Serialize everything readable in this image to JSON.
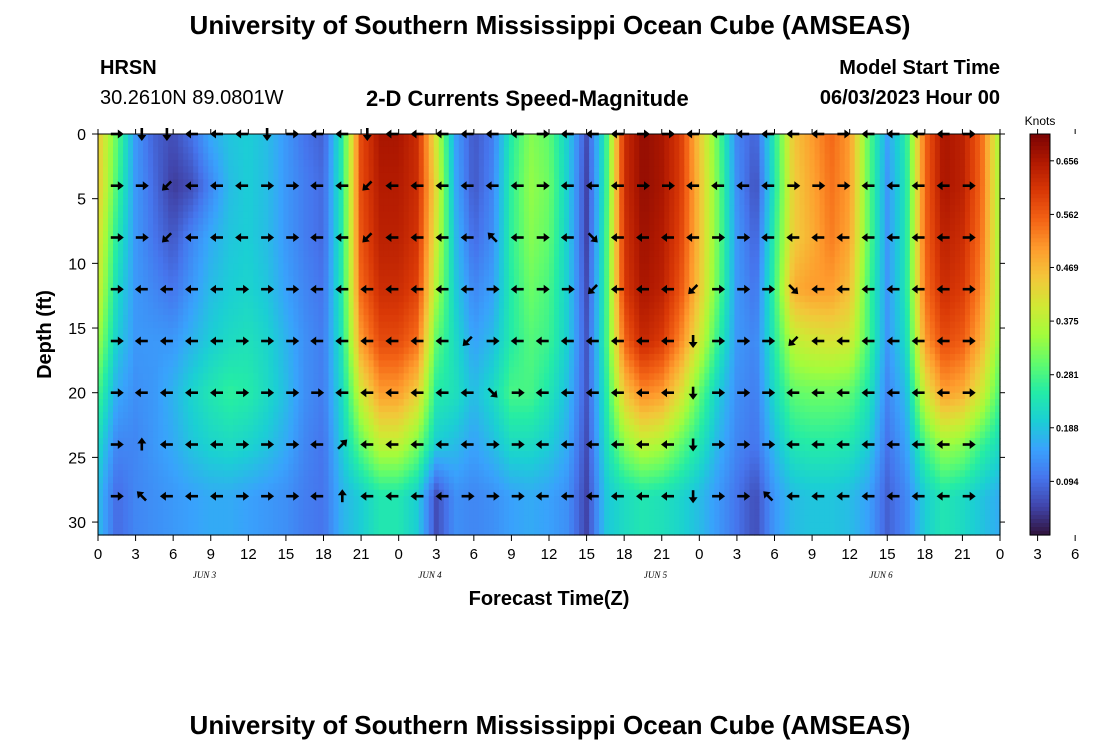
{
  "header": {
    "title": "University of Southern Mississippi Ocean Cube (AMSEAS)",
    "station": "HRSN",
    "coords": "30.2610N  89.0801W",
    "plot_title": "2-D Currents Speed-Magnitude",
    "start_label": "Model Start Time",
    "start_value": "06/03/2023 Hour 00"
  },
  "footer": {
    "title": "University of Southern Mississippi Ocean Cube (AMSEAS)"
  },
  "chart_data": {
    "type": "heatmap",
    "title": "2-D Currents Speed-Magnitude",
    "xlabel": "Forecast Time(Z)",
    "ylabel": "Depth (ft)",
    "xlim": [
      0,
      72
    ],
    "ylim": [
      31,
      0
    ],
    "x_tick_labels": [
      "0",
      "3",
      "6",
      "9",
      "12",
      "15",
      "18",
      "21",
      "0",
      "3",
      "6",
      "9",
      "12",
      "15",
      "18",
      "21",
      "0",
      "3",
      "6",
      "9",
      "12",
      "15",
      "18",
      "21",
      "0",
      "3",
      "6",
      "9",
      "12",
      "15",
      "18",
      "21",
      "0"
    ],
    "y_ticks": [
      0,
      5,
      10,
      15,
      20,
      25,
      30
    ],
    "day_labels": [
      {
        "hour": 8.5,
        "label": "JUN 3"
      },
      {
        "hour": 26.5,
        "label": "JUN 4"
      },
      {
        "hour": 44.5,
        "label": "JUN 5"
      },
      {
        "hour": 62.5,
        "label": "JUN 6"
      }
    ],
    "colorbar": {
      "title": "Knots",
      "range": [
        0,
        0.703
      ],
      "ticks": [
        0.094,
        0.188,
        0.281,
        0.375,
        0.469,
        0.562,
        0.656
      ],
      "tick_labels": [
        "0.094",
        "0.188",
        "0.281",
        "0.375",
        "0.469",
        "0.562",
        "0.656"
      ],
      "colors": [
        "#30123b",
        "#4145ab",
        "#4675ed",
        "#39a2fc",
        "#1bcfd4",
        "#24eca6",
        "#61fc6c",
        "#a4fc3b",
        "#d1e834",
        "#f3c63a",
        "#fe9b2d",
        "#f36315",
        "#d93806",
        "#b11901",
        "#7a0403"
      ]
    },
    "depth_levels_ft": [
      0,
      4,
      8,
      12,
      16,
      20,
      24,
      28
    ],
    "time_hours": [
      0,
      1.5,
      3,
      4.5,
      6,
      7.5,
      9,
      10.5,
      12,
      13.5,
      15,
      16.5,
      18,
      19.5,
      21,
      22.5,
      24,
      25.5,
      27,
      28.5,
      30,
      31.5,
      33,
      34.5,
      36,
      37.5,
      39,
      40.5,
      42,
      43.5,
      45,
      46.5,
      48,
      49.5,
      51,
      52.5,
      54,
      55.5,
      57,
      58.5,
      60,
      61.5,
      63,
      64.5,
      66,
      67.5,
      69,
      70.5,
      72
    ],
    "speed_knots_by_depth": [
      [
        0.45,
        0.3,
        0.14,
        0.08,
        0.06,
        0.1,
        0.16,
        0.19,
        0.2,
        0.18,
        0.14,
        0.1,
        0.08,
        0.25,
        0.58,
        0.66,
        0.66,
        0.62,
        0.4,
        0.15,
        0.07,
        0.11,
        0.25,
        0.33,
        0.3,
        0.2,
        0.06,
        0.25,
        0.62,
        0.68,
        0.66,
        0.6,
        0.45,
        0.3,
        0.12,
        0.08,
        0.25,
        0.45,
        0.5,
        0.55,
        0.5,
        0.3,
        0.15,
        0.25,
        0.55,
        0.66,
        0.64,
        0.55,
        0.35
      ],
      [
        0.45,
        0.28,
        0.14,
        0.09,
        0.04,
        0.06,
        0.12,
        0.18,
        0.2,
        0.18,
        0.14,
        0.11,
        0.09,
        0.25,
        0.58,
        0.65,
        0.65,
        0.62,
        0.42,
        0.16,
        0.07,
        0.12,
        0.26,
        0.34,
        0.31,
        0.2,
        0.05,
        0.25,
        0.62,
        0.68,
        0.66,
        0.6,
        0.46,
        0.31,
        0.13,
        0.06,
        0.24,
        0.44,
        0.49,
        0.54,
        0.5,
        0.3,
        0.14,
        0.24,
        0.55,
        0.66,
        0.64,
        0.55,
        0.35
      ],
      [
        0.42,
        0.25,
        0.14,
        0.1,
        0.07,
        0.12,
        0.16,
        0.19,
        0.2,
        0.18,
        0.14,
        0.11,
        0.09,
        0.25,
        0.57,
        0.64,
        0.64,
        0.61,
        0.4,
        0.18,
        0.09,
        0.13,
        0.26,
        0.33,
        0.3,
        0.2,
        0.05,
        0.26,
        0.61,
        0.67,
        0.65,
        0.59,
        0.46,
        0.31,
        0.14,
        0.08,
        0.26,
        0.44,
        0.48,
        0.53,
        0.49,
        0.3,
        0.14,
        0.24,
        0.55,
        0.64,
        0.62,
        0.54,
        0.35
      ],
      [
        0.4,
        0.22,
        0.14,
        0.12,
        0.1,
        0.14,
        0.18,
        0.2,
        0.21,
        0.19,
        0.15,
        0.12,
        0.1,
        0.25,
        0.55,
        0.62,
        0.62,
        0.59,
        0.36,
        0.2,
        0.12,
        0.15,
        0.25,
        0.31,
        0.28,
        0.2,
        0.06,
        0.26,
        0.6,
        0.66,
        0.64,
        0.57,
        0.45,
        0.3,
        0.14,
        0.1,
        0.27,
        0.48,
        0.5,
        0.5,
        0.46,
        0.28,
        0.14,
        0.24,
        0.54,
        0.62,
        0.6,
        0.52,
        0.35
      ],
      [
        0.35,
        0.2,
        0.14,
        0.14,
        0.14,
        0.17,
        0.2,
        0.22,
        0.23,
        0.21,
        0.17,
        0.13,
        0.11,
        0.24,
        0.5,
        0.58,
        0.58,
        0.54,
        0.3,
        0.22,
        0.15,
        0.18,
        0.25,
        0.29,
        0.27,
        0.2,
        0.07,
        0.26,
        0.55,
        0.63,
        0.6,
        0.52,
        0.4,
        0.26,
        0.14,
        0.12,
        0.25,
        0.38,
        0.4,
        0.41,
        0.4,
        0.28,
        0.14,
        0.22,
        0.5,
        0.58,
        0.56,
        0.48,
        0.33
      ],
      [
        0.28,
        0.16,
        0.13,
        0.14,
        0.17,
        0.21,
        0.24,
        0.26,
        0.25,
        0.22,
        0.18,
        0.13,
        0.11,
        0.22,
        0.4,
        0.5,
        0.5,
        0.44,
        0.25,
        0.23,
        0.18,
        0.22,
        0.28,
        0.28,
        0.24,
        0.18,
        0.07,
        0.24,
        0.45,
        0.52,
        0.5,
        0.42,
        0.3,
        0.2,
        0.13,
        0.11,
        0.22,
        0.3,
        0.31,
        0.31,
        0.3,
        0.24,
        0.12,
        0.18,
        0.4,
        0.5,
        0.48,
        0.4,
        0.28
      ],
      [
        0.22,
        0.12,
        0.12,
        0.14,
        0.16,
        0.19,
        0.21,
        0.22,
        0.21,
        0.19,
        0.16,
        0.12,
        0.1,
        0.2,
        0.3,
        0.38,
        0.38,
        0.32,
        0.2,
        0.18,
        0.15,
        0.18,
        0.22,
        0.22,
        0.2,
        0.16,
        0.06,
        0.22,
        0.33,
        0.38,
        0.36,
        0.3,
        0.24,
        0.17,
        0.12,
        0.1,
        0.18,
        0.24,
        0.25,
        0.25,
        0.24,
        0.2,
        0.1,
        0.15,
        0.28,
        0.35,
        0.33,
        0.27,
        0.22
      ],
      [
        0.18,
        0.09,
        0.12,
        0.13,
        0.14,
        0.15,
        0.16,
        0.16,
        0.15,
        0.14,
        0.13,
        0.11,
        0.1,
        0.17,
        0.2,
        0.24,
        0.24,
        0.2,
        0.06,
        0.13,
        0.12,
        0.13,
        0.15,
        0.16,
        0.15,
        0.13,
        0.05,
        0.19,
        0.22,
        0.24,
        0.23,
        0.21,
        0.18,
        0.14,
        0.1,
        0.06,
        0.14,
        0.18,
        0.19,
        0.19,
        0.18,
        0.15,
        0.08,
        0.12,
        0.2,
        0.24,
        0.22,
        0.19,
        0.16
      ]
    ],
    "vector_directions": [
      [
        "E",
        "S",
        "S",
        "W",
        "W",
        "W",
        "S",
        "E",
        "W",
        "W",
        "S",
        "W",
        "W",
        "W",
        "W",
        "W",
        "W",
        "E",
        "W",
        "W",
        "W",
        "E",
        "E",
        "W",
        "W",
        "W",
        "W",
        "W",
        "W",
        "E",
        "W",
        "W",
        "W",
        "W",
        "E"
      ],
      [
        "E",
        "E",
        "SW",
        "W",
        "W",
        "W",
        "E",
        "E",
        "W",
        "W",
        "SW",
        "W",
        "W",
        "W",
        "W",
        "W",
        "W",
        "E",
        "W",
        "W",
        "W",
        "E",
        "E",
        "W",
        "W",
        "W",
        "W",
        "E",
        "E",
        "E",
        "W",
        "W",
        "W",
        "W",
        "E"
      ],
      [
        "E",
        "E",
        "SW",
        "W",
        "W",
        "W",
        "E",
        "E",
        "W",
        "W",
        "SW",
        "W",
        "W",
        "W",
        "W",
        "NW",
        "W",
        "E",
        "W",
        "SE",
        "W",
        "W",
        "W",
        "W",
        "E",
        "E",
        "W",
        "W",
        "W",
        "W",
        "W",
        "W",
        "W",
        "W",
        "E"
      ],
      [
        "E",
        "W",
        "W",
        "W",
        "W",
        "E",
        "E",
        "E",
        "W",
        "W",
        "W",
        "W",
        "W",
        "W",
        "W",
        "E",
        "W",
        "E",
        "E",
        "SW",
        "W",
        "W",
        "W",
        "SW",
        "E",
        "E",
        "E",
        "SE",
        "W",
        "W",
        "W",
        "W",
        "W",
        "W",
        "E"
      ],
      [
        "E",
        "W",
        "W",
        "W",
        "W",
        "E",
        "E",
        "E",
        "W",
        "W",
        "W",
        "W",
        "W",
        "W",
        "SW",
        "E",
        "W",
        "W",
        "W",
        "W",
        "W",
        "W",
        "W",
        "S",
        "E",
        "E",
        "E",
        "SW",
        "W",
        "W",
        "W",
        "W",
        "W",
        "W",
        "E"
      ],
      [
        "E",
        "W",
        "W",
        "W",
        "W",
        "E",
        "E",
        "E",
        "E",
        "W",
        "W",
        "W",
        "W",
        "W",
        "W",
        "SE",
        "E",
        "W",
        "W",
        "W",
        "W",
        "W",
        "W",
        "S",
        "E",
        "E",
        "E",
        "W",
        "W",
        "W",
        "W",
        "W",
        "W",
        "W",
        "E"
      ],
      [
        "E",
        "N",
        "W",
        "W",
        "W",
        "E",
        "E",
        "E",
        "W",
        "NE",
        "W",
        "W",
        "W",
        "W",
        "W",
        "E",
        "E",
        "W",
        "W",
        "W",
        "W",
        "W",
        "W",
        "S",
        "E",
        "E",
        "E",
        "W",
        "W",
        "W",
        "W",
        "W",
        "W",
        "W",
        "E"
      ],
      [
        "E",
        "NW",
        "W",
        "W",
        "W",
        "E",
        "E",
        "E",
        "W",
        "N",
        "W",
        "W",
        "W",
        "W",
        "E",
        "E",
        "E",
        "W",
        "W",
        "W",
        "W",
        "W",
        "W",
        "S",
        "E",
        "E",
        "NW",
        "W",
        "W",
        "W",
        "W",
        "W",
        "W",
        "W",
        "E"
      ]
    ]
  }
}
